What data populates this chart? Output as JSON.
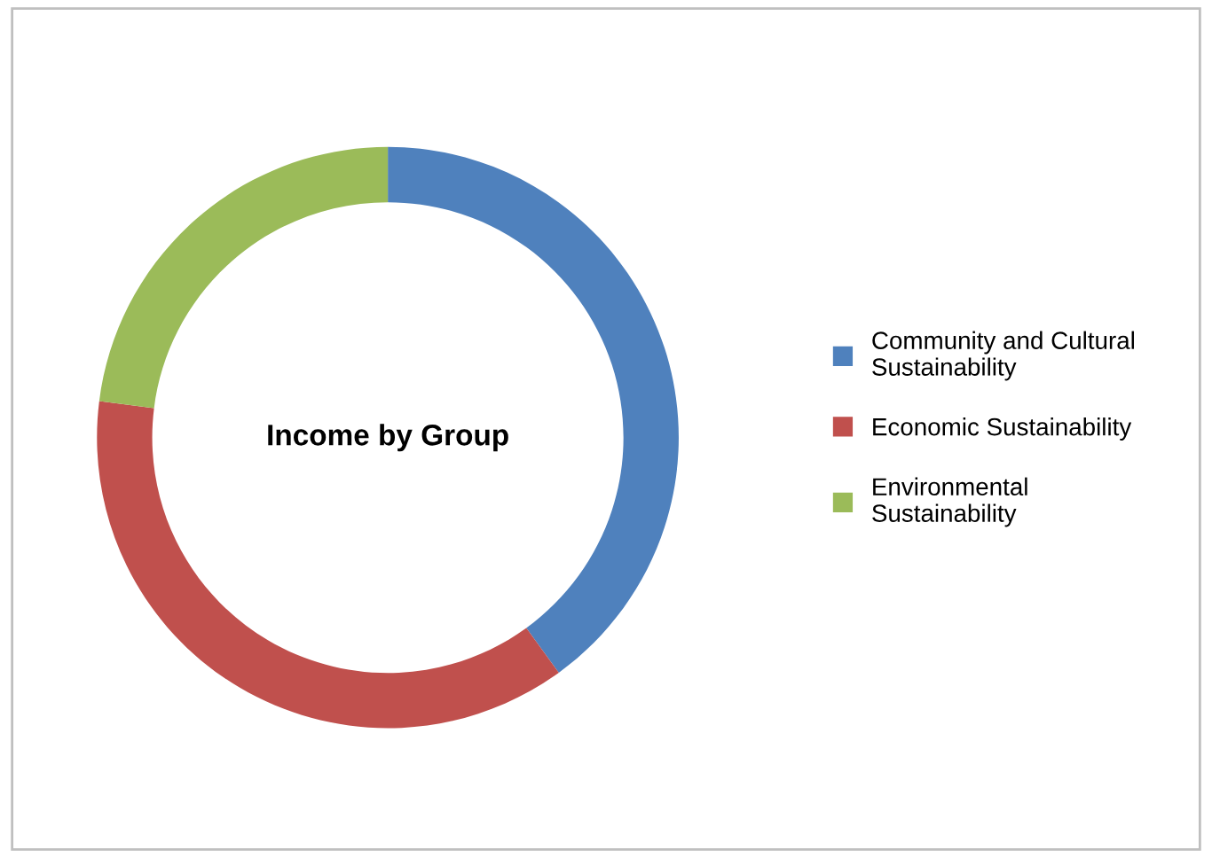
{
  "chart_data": {
    "type": "donut",
    "title": "Income by Group",
    "categories": [
      "Community and Cultural\nSustainability",
      "Economic Sustainability",
      "Environmental\nSustainability"
    ],
    "values": [
      40,
      37,
      23
    ],
    "colors": [
      "#4f81bd",
      "#c0504d",
      "#9bbb59"
    ],
    "legend": "right"
  }
}
